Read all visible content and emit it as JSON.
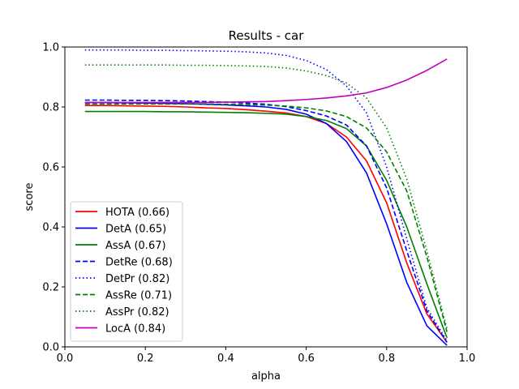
{
  "chart_data": {
    "type": "line",
    "title": "Results - car",
    "xlabel": "alpha",
    "ylabel": "score",
    "xlim": [
      0.0,
      1.0
    ],
    "ylim": [
      0.0,
      1.0
    ],
    "xticks": [
      "0.0",
      "0.2",
      "0.4",
      "0.6",
      "0.8",
      "1.0"
    ],
    "yticks": [
      "0.0",
      "0.2",
      "0.4",
      "0.6",
      "0.8",
      "1.0"
    ],
    "grid": false,
    "legend_position": "lower-left",
    "x": [
      0.05,
      0.1,
      0.15,
      0.2,
      0.25,
      0.3,
      0.35,
      0.4,
      0.45,
      0.5,
      0.55,
      0.6,
      0.65,
      0.7,
      0.75,
      0.8,
      0.85,
      0.9,
      0.95
    ],
    "series": [
      {
        "name": "HOTA (0.66)",
        "color": "#ff0000",
        "dash": "solid",
        "values": [
          0.805,
          0.805,
          0.804,
          0.803,
          0.802,
          0.8,
          0.797,
          0.795,
          0.791,
          0.786,
          0.78,
          0.768,
          0.745,
          0.7,
          0.62,
          0.48,
          0.28,
          0.11,
          0.015
        ]
      },
      {
        "name": "DetA (0.65)",
        "color": "#0000ff",
        "dash": "solid",
        "values": [
          0.815,
          0.815,
          0.814,
          0.813,
          0.812,
          0.811,
          0.809,
          0.807,
          0.804,
          0.8,
          0.792,
          0.776,
          0.745,
          0.685,
          0.58,
          0.41,
          0.215,
          0.07,
          0.005
        ]
      },
      {
        "name": "AssA (0.67)",
        "color": "#008000",
        "dash": "solid",
        "values": [
          0.785,
          0.785,
          0.785,
          0.785,
          0.784,
          0.784,
          0.783,
          0.782,
          0.781,
          0.779,
          0.776,
          0.768,
          0.755,
          0.728,
          0.67,
          0.555,
          0.4,
          0.21,
          0.03
        ]
      },
      {
        "name": "DetRe (0.68)",
        "color": "#0000ff",
        "dash": "dashed",
        "values": [
          0.823,
          0.823,
          0.822,
          0.822,
          0.821,
          0.82,
          0.818,
          0.816,
          0.813,
          0.809,
          0.801,
          0.788,
          0.77,
          0.74,
          0.67,
          0.53,
          0.32,
          0.12,
          0.015
        ]
      },
      {
        "name": "DetPr (0.82)",
        "color": "#0000ff",
        "dash": "dotted",
        "values": [
          0.99,
          0.99,
          0.99,
          0.989,
          0.989,
          0.988,
          0.987,
          0.986,
          0.984,
          0.98,
          0.972,
          0.955,
          0.925,
          0.87,
          0.78,
          0.6,
          0.36,
          0.13,
          0.02
        ]
      },
      {
        "name": "AssRe (0.71)",
        "color": "#008000",
        "dash": "dashed",
        "values": [
          0.81,
          0.81,
          0.81,
          0.81,
          0.81,
          0.81,
          0.81,
          0.809,
          0.808,
          0.806,
          0.803,
          0.797,
          0.787,
          0.768,
          0.73,
          0.65,
          0.52,
          0.3,
          0.05
        ]
      },
      {
        "name": "AssPr (0.82)",
        "color": "#008000",
        "dash": "dotted",
        "values": [
          0.94,
          0.94,
          0.94,
          0.94,
          0.94,
          0.939,
          0.939,
          0.938,
          0.937,
          0.935,
          0.93,
          0.92,
          0.905,
          0.88,
          0.83,
          0.73,
          0.56,
          0.32,
          0.06
        ]
      },
      {
        "name": "LocA (0.84)",
        "color": "#bf00bf",
        "dash": "solid",
        "values": [
          0.815,
          0.815,
          0.815,
          0.815,
          0.815,
          0.815,
          0.815,
          0.816,
          0.817,
          0.818,
          0.821,
          0.825,
          0.83,
          0.837,
          0.847,
          0.865,
          0.89,
          0.922,
          0.96
        ]
      }
    ]
  }
}
